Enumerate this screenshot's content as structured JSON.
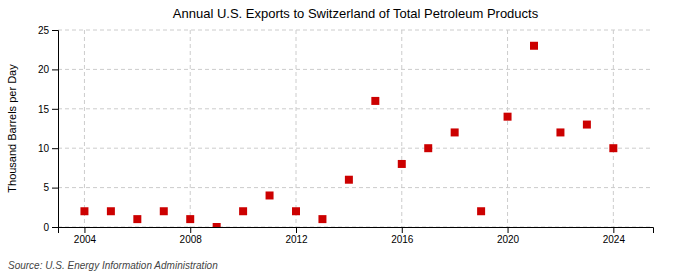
{
  "chart_data": {
    "type": "scatter",
    "title": "Annual U.S. Exports to Switzerland of Total Petroleum Products",
    "ylabel": "Thousand Barrels per Day",
    "source": "Source: U.S. Energy Information Administration",
    "x": [
      2004,
      2005,
      2006,
      2007,
      2008,
      2009,
      2010,
      2011,
      2012,
      2013,
      2014,
      2015,
      2016,
      2017,
      2018,
      2019,
      2020,
      2021,
      2022,
      2023,
      2024
    ],
    "values": [
      2,
      2,
      1,
      2,
      1,
      0,
      2,
      4,
      2,
      1,
      6,
      16,
      8,
      10,
      12,
      2,
      14,
      23,
      12,
      13,
      10
    ],
    "color": "#cc0000",
    "marker": "square",
    "xlim": [
      2003.0,
      2025.5
    ],
    "ylim": [
      0,
      25
    ],
    "xticks": [
      2004,
      2008,
      2012,
      2016,
      2020,
      2024
    ],
    "yticks": [
      0,
      5,
      10,
      15,
      20,
      25
    ],
    "grid": true
  }
}
